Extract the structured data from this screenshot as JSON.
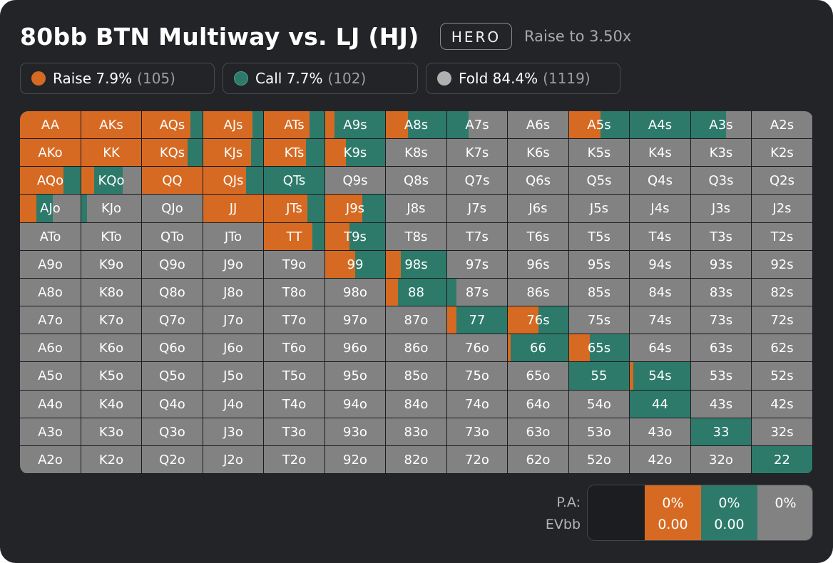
{
  "title": "80bb BTN Multiway vs. LJ (HJ)",
  "hero_badge": "HERO",
  "action": "Raise to 3.50x",
  "legend": {
    "raise": {
      "label": "Raise 7.9%",
      "count": "(105)",
      "color": "#d66a23"
    },
    "call": {
      "label": "Call 7.7%",
      "count": "(102)",
      "color": "#2d7a6b"
    },
    "fold": {
      "label": "Fold 84.4%",
      "count": "(1119)",
      "color": "#b0b0b0"
    }
  },
  "colors": {
    "raise": "#d66a23",
    "call": "#2d7a6b",
    "fold": "#828282"
  },
  "hand_matrix": {
    "ranks": [
      "A",
      "K",
      "Q",
      "J",
      "T",
      "9",
      "8",
      "7",
      "6",
      "5",
      "4",
      "3",
      "2"
    ],
    "hands": [
      {
        "hand": "AA",
        "raise": 1.0,
        "call": 0
      },
      {
        "hand": "AKs",
        "raise": 1.0,
        "call": 0
      },
      {
        "hand": "AQs",
        "raise": 0.8,
        "call": 0.2
      },
      {
        "hand": "AJs",
        "raise": 0.82,
        "call": 0.18
      },
      {
        "hand": "ATs",
        "raise": 0.75,
        "call": 0.25
      },
      {
        "hand": "A9s",
        "raise": 0.15,
        "call": 0.85
      },
      {
        "hand": "A8s",
        "raise": 0.36,
        "call": 0.64
      },
      {
        "hand": "A7s",
        "raise": 0,
        "call": 0.36
      },
      {
        "hand": "A6s",
        "raise": 0,
        "call": 0
      },
      {
        "hand": "A5s",
        "raise": 0.52,
        "call": 0.48
      },
      {
        "hand": "A4s",
        "raise": 0,
        "call": 1.0
      },
      {
        "hand": "A3s",
        "raise": 0,
        "call": 0.58
      },
      {
        "hand": "A2s",
        "raise": 0,
        "call": 0
      },
      {
        "hand": "AKo",
        "raise": 1.0,
        "call": 0
      },
      {
        "hand": "KK",
        "raise": 1.0,
        "call": 0
      },
      {
        "hand": "KQs",
        "raise": 0.75,
        "call": 0.25
      },
      {
        "hand": "KJs",
        "raise": 0.8,
        "call": 0.2
      },
      {
        "hand": "KTs",
        "raise": 0.7,
        "call": 0.3
      },
      {
        "hand": "K9s",
        "raise": 0.35,
        "call": 0.65
      },
      {
        "hand": "K8s",
        "raise": 0,
        "call": 0
      },
      {
        "hand": "K7s",
        "raise": 0,
        "call": 0
      },
      {
        "hand": "K6s",
        "raise": 0,
        "call": 0
      },
      {
        "hand": "K5s",
        "raise": 0,
        "call": 0
      },
      {
        "hand": "K4s",
        "raise": 0,
        "call": 0
      },
      {
        "hand": "K3s",
        "raise": 0,
        "call": 0
      },
      {
        "hand": "K2s",
        "raise": 0,
        "call": 0
      },
      {
        "hand": "AQo",
        "raise": 0.72,
        "call": 0.28
      },
      {
        "hand": "KQo",
        "raise": 0.22,
        "call": 0.48
      },
      {
        "hand": "QQ",
        "raise": 1.0,
        "call": 0
      },
      {
        "hand": "QJs",
        "raise": 0.72,
        "call": 0.28
      },
      {
        "hand": "QTs",
        "raise": 0,
        "call": 1.0
      },
      {
        "hand": "Q9s",
        "raise": 0,
        "call": 0
      },
      {
        "hand": "Q8s",
        "raise": 0,
        "call": 0
      },
      {
        "hand": "Q7s",
        "raise": 0,
        "call": 0
      },
      {
        "hand": "Q6s",
        "raise": 0,
        "call": 0
      },
      {
        "hand": "Q5s",
        "raise": 0,
        "call": 0
      },
      {
        "hand": "Q4s",
        "raise": 0,
        "call": 0
      },
      {
        "hand": "Q3s",
        "raise": 0,
        "call": 0
      },
      {
        "hand": "Q2s",
        "raise": 0,
        "call": 0
      },
      {
        "hand": "AJo",
        "raise": 0.27,
        "call": 0.27
      },
      {
        "hand": "KJo",
        "raise": 0,
        "call": 0.09
      },
      {
        "hand": "QJo",
        "raise": 0,
        "call": 0
      },
      {
        "hand": "JJ",
        "raise": 1.0,
        "call": 0
      },
      {
        "hand": "JTs",
        "raise": 0.72,
        "call": 0.28
      },
      {
        "hand": "J9s",
        "raise": 0.62,
        "call": 0.38
      },
      {
        "hand": "J8s",
        "raise": 0,
        "call": 0
      },
      {
        "hand": "J7s",
        "raise": 0,
        "call": 0
      },
      {
        "hand": "J6s",
        "raise": 0,
        "call": 0
      },
      {
        "hand": "J5s",
        "raise": 0,
        "call": 0
      },
      {
        "hand": "J4s",
        "raise": 0,
        "call": 0
      },
      {
        "hand": "J3s",
        "raise": 0,
        "call": 0
      },
      {
        "hand": "J2s",
        "raise": 0,
        "call": 0
      },
      {
        "hand": "ATo",
        "raise": 0,
        "call": 0
      },
      {
        "hand": "KTo",
        "raise": 0,
        "call": 0
      },
      {
        "hand": "QTo",
        "raise": 0,
        "call": 0
      },
      {
        "hand": "JTo",
        "raise": 0,
        "call": 0
      },
      {
        "hand": "TT",
        "raise": 0.8,
        "call": 0.2
      },
      {
        "hand": "T9s",
        "raise": 0.4,
        "call": 0.6
      },
      {
        "hand": "T8s",
        "raise": 0,
        "call": 0
      },
      {
        "hand": "T7s",
        "raise": 0,
        "call": 0
      },
      {
        "hand": "T6s",
        "raise": 0,
        "call": 0
      },
      {
        "hand": "T5s",
        "raise": 0,
        "call": 0
      },
      {
        "hand": "T4s",
        "raise": 0,
        "call": 0
      },
      {
        "hand": "T3s",
        "raise": 0,
        "call": 0
      },
      {
        "hand": "T2s",
        "raise": 0,
        "call": 0
      },
      {
        "hand": "A9o",
        "raise": 0,
        "call": 0
      },
      {
        "hand": "K9o",
        "raise": 0,
        "call": 0
      },
      {
        "hand": "Q9o",
        "raise": 0,
        "call": 0
      },
      {
        "hand": "J9o",
        "raise": 0,
        "call": 0
      },
      {
        "hand": "T9o",
        "raise": 0,
        "call": 0
      },
      {
        "hand": "99",
        "raise": 0.5,
        "call": 0.5
      },
      {
        "hand": "98s",
        "raise": 0.25,
        "call": 0.75
      },
      {
        "hand": "97s",
        "raise": 0,
        "call": 0
      },
      {
        "hand": "96s",
        "raise": 0,
        "call": 0
      },
      {
        "hand": "95s",
        "raise": 0,
        "call": 0
      },
      {
        "hand": "94s",
        "raise": 0,
        "call": 0
      },
      {
        "hand": "93s",
        "raise": 0,
        "call": 0
      },
      {
        "hand": "92s",
        "raise": 0,
        "call": 0
      },
      {
        "hand": "A8o",
        "raise": 0,
        "call": 0
      },
      {
        "hand": "K8o",
        "raise": 0,
        "call": 0
      },
      {
        "hand": "Q8o",
        "raise": 0,
        "call": 0
      },
      {
        "hand": "J8o",
        "raise": 0,
        "call": 0
      },
      {
        "hand": "T8o",
        "raise": 0,
        "call": 0
      },
      {
        "hand": "98o",
        "raise": 0,
        "call": 0
      },
      {
        "hand": "88",
        "raise": 0.2,
        "call": 0.8
      },
      {
        "hand": "87s",
        "raise": 0,
        "call": 0.15
      },
      {
        "hand": "86s",
        "raise": 0,
        "call": 0
      },
      {
        "hand": "85s",
        "raise": 0,
        "call": 0
      },
      {
        "hand": "84s",
        "raise": 0,
        "call": 0
      },
      {
        "hand": "83s",
        "raise": 0,
        "call": 0
      },
      {
        "hand": "82s",
        "raise": 0,
        "call": 0
      },
      {
        "hand": "A7o",
        "raise": 0,
        "call": 0
      },
      {
        "hand": "K7o",
        "raise": 0,
        "call": 0
      },
      {
        "hand": "Q7o",
        "raise": 0,
        "call": 0
      },
      {
        "hand": "J7o",
        "raise": 0,
        "call": 0
      },
      {
        "hand": "T7o",
        "raise": 0,
        "call": 0
      },
      {
        "hand": "97o",
        "raise": 0,
        "call": 0
      },
      {
        "hand": "87o",
        "raise": 0,
        "call": 0
      },
      {
        "hand": "77",
        "raise": 0.15,
        "call": 0.85
      },
      {
        "hand": "76s",
        "raise": 0.5,
        "call": 0.5
      },
      {
        "hand": "75s",
        "raise": 0,
        "call": 0
      },
      {
        "hand": "74s",
        "raise": 0,
        "call": 0
      },
      {
        "hand": "73s",
        "raise": 0,
        "call": 0
      },
      {
        "hand": "72s",
        "raise": 0,
        "call": 0
      },
      {
        "hand": "A6o",
        "raise": 0,
        "call": 0
      },
      {
        "hand": "K6o",
        "raise": 0,
        "call": 0
      },
      {
        "hand": "Q6o",
        "raise": 0,
        "call": 0
      },
      {
        "hand": "J6o",
        "raise": 0,
        "call": 0
      },
      {
        "hand": "T6o",
        "raise": 0,
        "call": 0
      },
      {
        "hand": "96o",
        "raise": 0,
        "call": 0
      },
      {
        "hand": "86o",
        "raise": 0,
        "call": 0
      },
      {
        "hand": "76o",
        "raise": 0,
        "call": 0
      },
      {
        "hand": "66",
        "raise": 0.05,
        "call": 0.95
      },
      {
        "hand": "65s",
        "raise": 0.35,
        "call": 0.65
      },
      {
        "hand": "64s",
        "raise": 0,
        "call": 0
      },
      {
        "hand": "63s",
        "raise": 0,
        "call": 0
      },
      {
        "hand": "62s",
        "raise": 0,
        "call": 0
      },
      {
        "hand": "A5o",
        "raise": 0,
        "call": 0
      },
      {
        "hand": "K5o",
        "raise": 0,
        "call": 0
      },
      {
        "hand": "Q5o",
        "raise": 0,
        "call": 0
      },
      {
        "hand": "J5o",
        "raise": 0,
        "call": 0
      },
      {
        "hand": "T5o",
        "raise": 0,
        "call": 0
      },
      {
        "hand": "95o",
        "raise": 0,
        "call": 0
      },
      {
        "hand": "85o",
        "raise": 0,
        "call": 0
      },
      {
        "hand": "75o",
        "raise": 0,
        "call": 0
      },
      {
        "hand": "65o",
        "raise": 0,
        "call": 0
      },
      {
        "hand": "55",
        "raise": 0,
        "call": 1.0
      },
      {
        "hand": "54s",
        "raise": 0.06,
        "call": 0.94
      },
      {
        "hand": "53s",
        "raise": 0,
        "call": 0
      },
      {
        "hand": "52s",
        "raise": 0,
        "call": 0
      },
      {
        "hand": "A4o",
        "raise": 0,
        "call": 0
      },
      {
        "hand": "K4o",
        "raise": 0,
        "call": 0
      },
      {
        "hand": "Q4o",
        "raise": 0,
        "call": 0
      },
      {
        "hand": "J4o",
        "raise": 0,
        "call": 0
      },
      {
        "hand": "T4o",
        "raise": 0,
        "call": 0
      },
      {
        "hand": "94o",
        "raise": 0,
        "call": 0
      },
      {
        "hand": "84o",
        "raise": 0,
        "call": 0
      },
      {
        "hand": "74o",
        "raise": 0,
        "call": 0
      },
      {
        "hand": "64o",
        "raise": 0,
        "call": 0
      },
      {
        "hand": "54o",
        "raise": 0,
        "call": 0
      },
      {
        "hand": "44",
        "raise": 0,
        "call": 1.0
      },
      {
        "hand": "43s",
        "raise": 0,
        "call": 0
      },
      {
        "hand": "42s",
        "raise": 0,
        "call": 0
      },
      {
        "hand": "A3o",
        "raise": 0,
        "call": 0
      },
      {
        "hand": "K3o",
        "raise": 0,
        "call": 0
      },
      {
        "hand": "Q3o",
        "raise": 0,
        "call": 0
      },
      {
        "hand": "J3o",
        "raise": 0,
        "call": 0
      },
      {
        "hand": "T3o",
        "raise": 0,
        "call": 0
      },
      {
        "hand": "93o",
        "raise": 0,
        "call": 0
      },
      {
        "hand": "83o",
        "raise": 0,
        "call": 0
      },
      {
        "hand": "73o",
        "raise": 0,
        "call": 0
      },
      {
        "hand": "63o",
        "raise": 0,
        "call": 0
      },
      {
        "hand": "53o",
        "raise": 0,
        "call": 0
      },
      {
        "hand": "43o",
        "raise": 0,
        "call": 0
      },
      {
        "hand": "33",
        "raise": 0,
        "call": 1.0
      },
      {
        "hand": "32s",
        "raise": 0,
        "call": 0
      },
      {
        "hand": "A2o",
        "raise": 0,
        "call": 0
      },
      {
        "hand": "K2o",
        "raise": 0,
        "call": 0
      },
      {
        "hand": "Q2o",
        "raise": 0,
        "call": 0
      },
      {
        "hand": "J2o",
        "raise": 0,
        "call": 0
      },
      {
        "hand": "T2o",
        "raise": 0,
        "call": 0
      },
      {
        "hand": "92o",
        "raise": 0,
        "call": 0
      },
      {
        "hand": "82o",
        "raise": 0,
        "call": 0
      },
      {
        "hand": "72o",
        "raise": 0,
        "call": 0
      },
      {
        "hand": "62o",
        "raise": 0,
        "call": 0
      },
      {
        "hand": "52o",
        "raise": 0,
        "call": 0
      },
      {
        "hand": "42o",
        "raise": 0,
        "call": 0
      },
      {
        "hand": "32o",
        "raise": 0,
        "call": 0
      },
      {
        "hand": "22",
        "raise": 0,
        "call": 1.0
      }
    ]
  },
  "stats": {
    "labels": {
      "pa": "P.A:",
      "ev": "EVbb"
    },
    "raise": {
      "pa": "0%",
      "ev": "0.00"
    },
    "call": {
      "pa": "0%",
      "ev": "0.00"
    },
    "fold": {
      "pa": "0%"
    }
  }
}
